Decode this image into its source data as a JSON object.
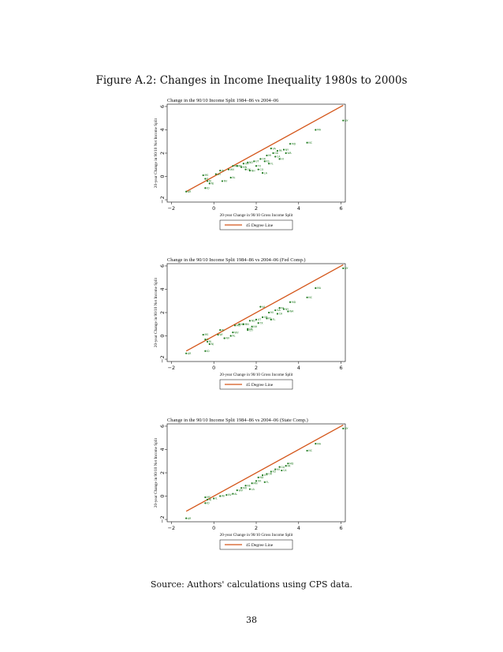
{
  "figure_title": "Figure A.2: Changes in Income Inequality 1980s to 2000s",
  "source_text": "Source: Authors' calculations using CPS data.",
  "page_number": "38",
  "colors": {
    "points": "#1d7a1d",
    "line": "#d4561a",
    "frame": "#000000"
  },
  "chart_data": [
    {
      "type": "scatter",
      "title": "Change in the 90/10 Income Split 1984–86 vs 2004–06",
      "xlabel": "20-year Change in 90/10 Gross Income Split",
      "ylabel": "20-year Change in 90/10 Net Income Split",
      "xlim": [
        -2.2,
        6.2
      ],
      "ylim": [
        -2.2,
        6.2
      ],
      "xticks": [
        "−2",
        "0",
        "2",
        "4",
        "6"
      ],
      "yticks": [
        "−2",
        "0",
        "2",
        "4",
        "6"
      ],
      "legend": "45 Degree Line",
      "legend_position": "bottom",
      "grid": false,
      "reference_line": {
        "from": [
          -1.3,
          -1.3
        ],
        "to": [
          6.1,
          6.1
        ]
      },
      "points": [
        {
          "x": -1.3,
          "y": -1.3,
          "label": "AR"
        },
        {
          "x": -0.4,
          "y": -1.0,
          "label": "ID"
        },
        {
          "x": -0.2,
          "y": -0.6,
          "label": "NJ"
        },
        {
          "x": -0.3,
          "y": -0.4,
          "label": "RI"
        },
        {
          "x": -0.4,
          "y": -0.2,
          "label": "IL"
        },
        {
          "x": -0.5,
          "y": 0.1,
          "label": "MS"
        },
        {
          "x": 0.1,
          "y": 0.2,
          "label": "WI"
        },
        {
          "x": 0.4,
          "y": -0.4,
          "label": "NV"
        },
        {
          "x": 0.8,
          "y": -0.1,
          "label": "AL"
        },
        {
          "x": 0.3,
          "y": 0.5,
          "label": "IN"
        },
        {
          "x": 0.7,
          "y": 0.6,
          "label": "WV"
        },
        {
          "x": 0.9,
          "y": 0.9,
          "label": "MO"
        },
        {
          "x": 1.1,
          "y": 0.9,
          "label": "NE"
        },
        {
          "x": 1.3,
          "y": 0.8,
          "label": "MN"
        },
        {
          "x": 1.5,
          "y": 0.6,
          "label": "OK"
        },
        {
          "x": 1.7,
          "y": 0.5,
          "label": "NH"
        },
        {
          "x": 1.6,
          "y": 1.2,
          "label": "ND"
        },
        {
          "x": 1.9,
          "y": 1.3,
          "label": "UT"
        },
        {
          "x": 2.0,
          "y": 0.9,
          "label": "TX"
        },
        {
          "x": 2.2,
          "y": 1.5,
          "label": "OR"
        },
        {
          "x": 2.4,
          "y": 1.3,
          "label": "KS"
        },
        {
          "x": 2.5,
          "y": 1.8,
          "label": "MI"
        },
        {
          "x": 2.6,
          "y": 1.1,
          "label": "FL"
        },
        {
          "x": 2.8,
          "y": 2.0,
          "label": "GA"
        },
        {
          "x": 2.9,
          "y": 1.7,
          "label": "CA"
        },
        {
          "x": 3.0,
          "y": 2.2,
          "label": "PA"
        },
        {
          "x": 3.1,
          "y": 1.5,
          "label": "HI"
        },
        {
          "x": 2.3,
          "y": 0.3,
          "label": "LA"
        },
        {
          "x": 2.1,
          "y": 0.6,
          "label": "CO"
        },
        {
          "x": 1.4,
          "y": 1.1,
          "label": "OH"
        },
        {
          "x": 2.7,
          "y": 2.4,
          "label": "VA"
        },
        {
          "x": 3.3,
          "y": 2.3,
          "label": "NY"
        },
        {
          "x": 3.6,
          "y": 2.8,
          "label": "MD"
        },
        {
          "x": 3.4,
          "y": 2.0,
          "label": "WA"
        },
        {
          "x": 4.8,
          "y": 4.0,
          "label": "MA"
        },
        {
          "x": 4.4,
          "y": 2.9,
          "label": "NC"
        },
        {
          "x": 6.1,
          "y": 4.8,
          "label": "NY"
        }
      ]
    },
    {
      "type": "scatter",
      "title": "Change in the 90/10 Income Split 1984–86 vs 2004–06 (Fed Comp.)",
      "xlabel": "20-year Change in 90/10 Gross Income Split",
      "ylabel": "20-year Change in 90/10 Net Income Split",
      "xlim": [
        -2.2,
        6.2
      ],
      "ylim": [
        -2.2,
        6.2
      ],
      "xticks": [
        "−2",
        "0",
        "2",
        "4",
        "6"
      ],
      "yticks": [
        "−2",
        "0",
        "2",
        "4",
        "6"
      ],
      "legend": "45 Degree Line",
      "legend_position": "bottom",
      "grid": false,
      "reference_line": {
        "from": [
          -1.3,
          -1.3
        ],
        "to": [
          6.1,
          6.1
        ]
      },
      "points": [
        {
          "x": -1.3,
          "y": -1.5,
          "label": "AR"
        },
        {
          "x": -0.4,
          "y": -1.3,
          "label": "ID"
        },
        {
          "x": -0.2,
          "y": -0.7,
          "label": "NJ"
        },
        {
          "x": -0.3,
          "y": -0.5,
          "label": "RI"
        },
        {
          "x": -0.4,
          "y": -0.3,
          "label": "IL"
        },
        {
          "x": -0.5,
          "y": 0.1,
          "label": "MS"
        },
        {
          "x": 0.2,
          "y": 0.1,
          "label": "WI"
        },
        {
          "x": 0.5,
          "y": -0.2,
          "label": "NV"
        },
        {
          "x": 0.8,
          "y": 0.0,
          "label": "AL"
        },
        {
          "x": 0.3,
          "y": 0.5,
          "label": "IN"
        },
        {
          "x": 0.9,
          "y": 0.3,
          "label": "WV"
        },
        {
          "x": 1.0,
          "y": 0.9,
          "label": "MO"
        },
        {
          "x": 1.2,
          "y": 1.0,
          "label": "NE"
        },
        {
          "x": 1.4,
          "y": 1.0,
          "label": "MN"
        },
        {
          "x": 1.6,
          "y": 0.6,
          "label": "OK"
        },
        {
          "x": 1.8,
          "y": 0.8,
          "label": "NH"
        },
        {
          "x": 1.7,
          "y": 1.3,
          "label": "ND"
        },
        {
          "x": 2.0,
          "y": 1.4,
          "label": "UT"
        },
        {
          "x": 2.1,
          "y": 1.1,
          "label": "TX"
        },
        {
          "x": 2.3,
          "y": 1.6,
          "label": "OR"
        },
        {
          "x": 2.5,
          "y": 1.5,
          "label": "KS"
        },
        {
          "x": 2.6,
          "y": 2.0,
          "label": "MI"
        },
        {
          "x": 2.7,
          "y": 1.4,
          "label": "FL"
        },
        {
          "x": 2.9,
          "y": 2.2,
          "label": "GA"
        },
        {
          "x": 3.0,
          "y": 1.9,
          "label": "CA"
        },
        {
          "x": 3.1,
          "y": 2.4,
          "label": "PA"
        },
        {
          "x": 2.2,
          "y": 2.5,
          "label": "VA"
        },
        {
          "x": 1.6,
          "y": 0.5,
          "label": "CO"
        },
        {
          "x": 3.3,
          "y": 2.3,
          "label": "NY"
        },
        {
          "x": 3.6,
          "y": 2.9,
          "label": "MD"
        },
        {
          "x": 3.5,
          "y": 2.1,
          "label": "WA"
        },
        {
          "x": 4.8,
          "y": 4.1,
          "label": "MA"
        },
        {
          "x": 4.4,
          "y": 3.3,
          "label": "NC"
        },
        {
          "x": 6.1,
          "y": 5.8,
          "label": "NY"
        }
      ]
    },
    {
      "type": "scatter",
      "title": "Change in the 90/10 Income Split 1984–86 vs 2004–06 (State Comp.)",
      "xlabel": "20-year Change in 90/10 Gross Income Split",
      "ylabel": "20-year Change in 90/10 Net Income Split",
      "xlim": [
        -2.2,
        6.2
      ],
      "ylim": [
        -2.2,
        6.2
      ],
      "xticks": [
        "−2",
        "0",
        "2",
        "4",
        "6"
      ],
      "yticks": [
        "−2",
        "0",
        "2",
        "4",
        "6"
      ],
      "legend": "45 Degree Line",
      "legend_position": "bottom",
      "grid": false,
      "reference_line": {
        "from": [
          -1.3,
          -1.3
        ],
        "to": [
          6.1,
          6.1
        ]
      },
      "points": [
        {
          "x": -1.3,
          "y": -1.9,
          "label": "AR"
        },
        {
          "x": -0.4,
          "y": -0.6,
          "label": "ID"
        },
        {
          "x": -0.3,
          "y": -0.3,
          "label": "NJ"
        },
        {
          "x": -0.4,
          "y": -0.1,
          "label": "MS"
        },
        {
          "x": 0.0,
          "y": -0.2,
          "label": "IL"
        },
        {
          "x": 0.3,
          "y": 0.0,
          "label": "WI"
        },
        {
          "x": 0.6,
          "y": 0.1,
          "label": "NV"
        },
        {
          "x": 0.9,
          "y": 0.2,
          "label": "AL"
        },
        {
          "x": 1.1,
          "y": 0.5,
          "label": "WV"
        },
        {
          "x": 1.3,
          "y": 0.7,
          "label": "MO"
        },
        {
          "x": 1.5,
          "y": 0.9,
          "label": "NE"
        },
        {
          "x": 1.7,
          "y": 0.6,
          "label": "LA"
        },
        {
          "x": 1.8,
          "y": 1.1,
          "label": "MN"
        },
        {
          "x": 2.0,
          "y": 1.3,
          "label": "OK"
        },
        {
          "x": 2.1,
          "y": 1.6,
          "label": "ND"
        },
        {
          "x": 2.3,
          "y": 1.8,
          "label": "UT"
        },
        {
          "x": 2.5,
          "y": 1.9,
          "label": "OR"
        },
        {
          "x": 2.7,
          "y": 2.1,
          "label": "KS"
        },
        {
          "x": 2.9,
          "y": 2.3,
          "label": "MI"
        },
        {
          "x": 3.1,
          "y": 2.5,
          "label": "GA"
        },
        {
          "x": 3.2,
          "y": 2.2,
          "label": "CA"
        },
        {
          "x": 3.4,
          "y": 2.6,
          "label": "PA"
        },
        {
          "x": 3.5,
          "y": 2.8,
          "label": "MD"
        },
        {
          "x": 2.4,
          "y": 1.2,
          "label": "FL"
        },
        {
          "x": 4.4,
          "y": 3.9,
          "label": "NC"
        },
        {
          "x": 4.8,
          "y": 4.5,
          "label": "MA"
        },
        {
          "x": 6.1,
          "y": 5.8,
          "label": "NY"
        }
      ]
    }
  ]
}
